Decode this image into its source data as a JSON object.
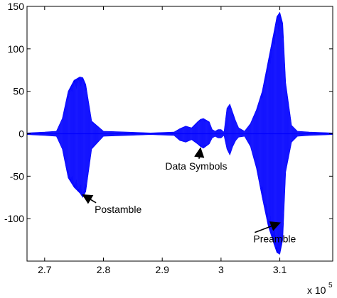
{
  "chart_data": {
    "type": "line",
    "title": "",
    "xlabel": "",
    "ylabel": "",
    "xlim": [
      2.67,
      3.19
    ],
    "ylim": [
      -150,
      150
    ],
    "x_multiplier_label": "x 10",
    "x_multiplier_exponent": "5",
    "x_ticks": [
      2.7,
      2.8,
      2.9,
      3.0,
      3.1
    ],
    "x_tick_labels": [
      "2.7",
      "2.8",
      "2.9",
      "3",
      "3.1"
    ],
    "y_ticks": [
      150,
      100,
      50,
      0,
      -50,
      -100
    ],
    "y_tick_labels": [
      "150",
      "100",
      "50",
      "0",
      "-50",
      "-100"
    ],
    "grid": false,
    "series_color": "#0000ff",
    "series": [
      {
        "style": "envelope-filled",
        "x": [
          2.67,
          2.7,
          2.72,
          2.73,
          2.74,
          2.75,
          2.76,
          2.765,
          2.77,
          2.78,
          2.8,
          2.84,
          2.88,
          2.92,
          2.93,
          2.94,
          2.95,
          2.96,
          2.965,
          2.97,
          2.98,
          2.985,
          2.99,
          2.995,
          3.0,
          3.005,
          3.01,
          3.015,
          3.02,
          3.025,
          3.03,
          3.04,
          3.05,
          3.06,
          3.07,
          3.08,
          3.09,
          3.095,
          3.1,
          3.105,
          3.11,
          3.12,
          3.13,
          3.15,
          3.19
        ],
        "upper": [
          1,
          2,
          3,
          18,
          50,
          63,
          67,
          66,
          58,
          15,
          3,
          2,
          1,
          2,
          6,
          9,
          7,
          14,
          17,
          18,
          14,
          5,
          3,
          5,
          5,
          2,
          30,
          35,
          25,
          15,
          7,
          3,
          12,
          28,
          50,
          85,
          120,
          138,
          143,
          130,
          60,
          10,
          3,
          2,
          1
        ],
        "lower": [
          -1,
          -2,
          -3,
          -18,
          -52,
          -63,
          -70,
          -75,
          -68,
          -18,
          -3,
          -2,
          -1,
          -2,
          -8,
          -10,
          -7,
          -12,
          -15,
          -17,
          -12,
          -5,
          -3,
          -5,
          -5,
          -2,
          -18,
          -25,
          -15,
          -8,
          -4,
          -3,
          -15,
          -40,
          -75,
          -108,
          -130,
          -140,
          -142,
          -125,
          -45,
          -10,
          -3,
          -2,
          -1
        ]
      }
    ],
    "annotations": [
      {
        "text": "Postamble",
        "arrow_to": [
          2.765,
          -72
        ],
        "text_at": [
          2.785,
          -93
        ]
      },
      {
        "text": "Data Symbols",
        "arrow_to": [
          2.965,
          -17
        ],
        "text_at": [
          2.955,
          -42
        ]
      },
      {
        "text": "Preamble",
        "arrow_to": [
          3.1,
          -105
        ],
        "text_at": [
          3.055,
          -128
        ]
      }
    ]
  }
}
